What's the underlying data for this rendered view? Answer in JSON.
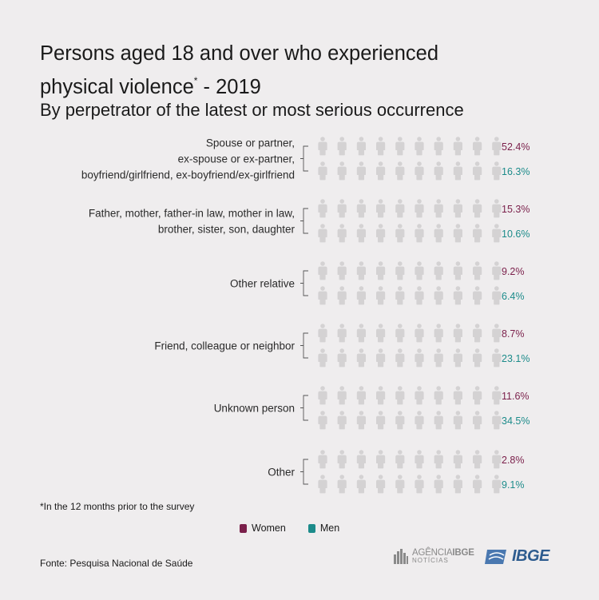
{
  "header": {
    "title_line1": "Persons aged 18 and over who experienced",
    "title_line2": "physical violence",
    "title_mark": "*",
    "title_year": " - 2019",
    "subtitle": "By perpetrator of the latest or most serious occurrence"
  },
  "chart_data": {
    "type": "pictogram",
    "unit": "%",
    "icon_value": 10,
    "icons_per_row": 10,
    "series": [
      {
        "name": "Women",
        "color": "#7a1f4a"
      },
      {
        "name": "Men",
        "color": "#1c8b8a"
      }
    ],
    "empty_color": "#d4d2d3",
    "groups": [
      {
        "label": [
          "Spouse or partner,",
          "ex-spouse or ex-partner,",
          "boyfriend/girlfriend, ex-boyfriend/ex-girlfriend"
        ],
        "women": 52.4,
        "men": 16.3
      },
      {
        "label": [
          "Father, mother, father-in law, mother in law,",
          "brother, sister, son, daughter"
        ],
        "women": 15.3,
        "men": 10.6
      },
      {
        "label": [
          "Other relative"
        ],
        "women": 9.2,
        "men": 6.4
      },
      {
        "label": [
          "Friend, colleague or neighbor"
        ],
        "women": 8.7,
        "men": 23.1
      },
      {
        "label": [
          "Unknown person"
        ],
        "women": 11.6,
        "men": 34.5
      },
      {
        "label": [
          "Other"
        ],
        "women": 2.8,
        "men": 9.1
      }
    ]
  },
  "footnote": "*In the 12 months prior to the survey",
  "legend": {
    "women": "Women",
    "men": "Men"
  },
  "source": "Fonte: Pesquisa Nacional de Saúde",
  "logos": {
    "agencia_prefix": "AGÊNCIA",
    "agencia_brand": "IBGE",
    "agencia_sub": "NOTÍCIAS",
    "ibge": "IBGE"
  }
}
